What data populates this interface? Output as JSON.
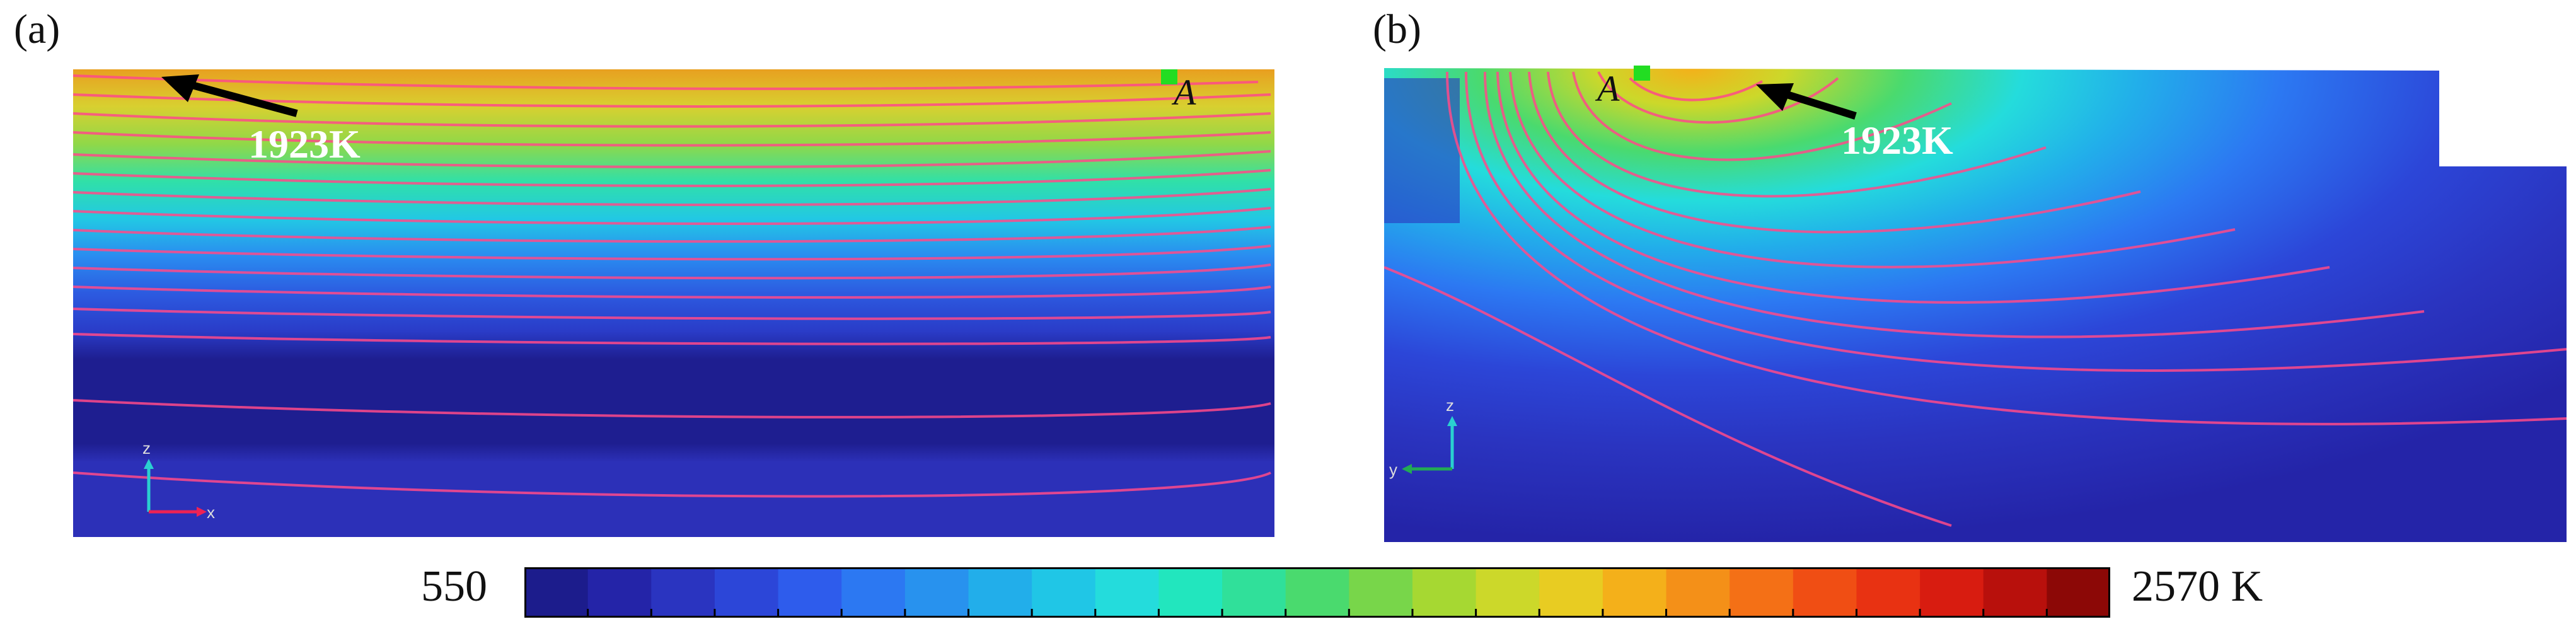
{
  "panels": [
    {
      "label": "(a)",
      "isotherm_label": "1923K",
      "point_label": "A",
      "axis_labels": [
        "z",
        "x"
      ]
    },
    {
      "label": "(b)",
      "isotherm_label": "1923K",
      "point_label": "A",
      "axis_labels": [
        "z",
        "y"
      ]
    }
  ],
  "colorbar": {
    "min_label": "550",
    "max_label": "2570 K",
    "min": 550,
    "max": 2570,
    "unit": "K",
    "colors": [
      "#1c1c8c",
      "#2424a8",
      "#2a34c0",
      "#2c46d8",
      "#2e5cec",
      "#2c78f2",
      "#2892ee",
      "#22aeea",
      "#20c6e6",
      "#24dcdc",
      "#22e6be",
      "#30e09a",
      "#4ada6e",
      "#78d64a",
      "#a6d832",
      "#ccd82a",
      "#e8cc22",
      "#f4b01a",
      "#f49018",
      "#f47016",
      "#f04e14",
      "#e83212",
      "#d81c10",
      "#b8100c",
      "#8c0806"
    ]
  },
  "colors": {
    "contour_line": "#ff4a8a",
    "marker": "#22dd22",
    "arrow": "#000000",
    "axis_z": "#2ad0d0",
    "axis_x": "#ee2255",
    "axis_y": "#22aa55"
  }
}
